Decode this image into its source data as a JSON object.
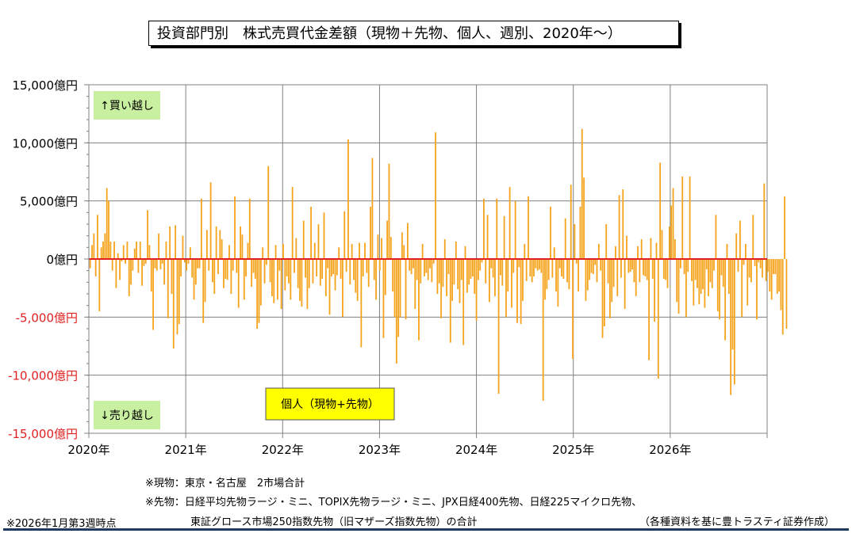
{
  "title": "投資部門別　株式売買代金差額（現物＋先物、個人、週別、2020年～）",
  "notes": {
    "spot": "※現物：東京・名古屋　2市場合計",
    "futures_line1": "※先物：日経平均先物ラージ・ミニ、TOPIX先物ラージ・ミニ、JPX日経400先物、日経225マイクロ先物、",
    "futures_line2": "東証グロース市場250指数先物（旧マザーズ指数先物）の合計",
    "asof": "※2026年1月第3週時点",
    "source": "（各種資料を基に豊トラスティ証券作成）"
  },
  "chart_data": {
    "type": "bar",
    "ylim": [
      -15000,
      15000
    ],
    "yticks": [
      15000,
      10000,
      5000,
      0,
      -5000,
      -10000,
      -15000
    ],
    "ytick_labels": [
      "15,000億円",
      "10,000億円",
      "5,000億円",
      "0億円",
      "-5,000億円",
      "-10,000億円",
      "-15,000億円"
    ],
    "xlim": [
      2020,
      2027
    ],
    "xticks": [
      2020,
      2021,
      2022,
      2023,
      2024,
      2025,
      2026
    ],
    "xtick_labels": [
      "2020年",
      "2021年",
      "2022年",
      "2023年",
      "2024年",
      "2025年",
      "2026年"
    ],
    "grid": true,
    "colors": {
      "bars": "#f5a31a",
      "zero_line": "#e02020",
      "negative_labels": "#e02020",
      "label_box": "#c9f0a0",
      "legend_box": "#ffff00"
    },
    "annotations": {
      "buy": "↑買い越し",
      "sell": "↓売り越し",
      "series_label": "個人（現物+先物）"
    },
    "series": [
      {
        "name": "個人（現物+先物）",
        "start": "2020-01-06",
        "interval_days": 7,
        "values": [
          -800,
          1200,
          2200,
          -1500,
          3800,
          -4500,
          1000,
          1500,
          2200,
          6100,
          5000,
          1500,
          -1000,
          1500,
          -2500,
          500,
          -1800,
          -200,
          1200,
          -400,
          1500,
          -3200,
          -2200,
          -1000,
          900,
          1500,
          -1200,
          1500,
          -2300,
          -600,
          -400,
          4200,
          1200,
          -2800,
          -6100,
          -800,
          -1000,
          2200,
          -900,
          -400,
          -2200,
          1500,
          -5100,
          2800,
          -3000,
          -7700,
          2900,
          -6500,
          -5600,
          -1500,
          2000,
          -300,
          -1000,
          -400,
          1000,
          -1600,
          -3500,
          -2200,
          -800,
          -800,
          5200,
          -5500,
          -3700,
          2500,
          -1000,
          6600,
          -2000,
          -3000,
          2800,
          -1300,
          2500,
          1700,
          -2500,
          -1700,
          -1800,
          1200,
          -3000,
          -1000,
          5400,
          -1200,
          -4200,
          2800,
          2100,
          -3500,
          -1500,
          1400,
          5200,
          -2400,
          -1200,
          -1700,
          -6000,
          -5500,
          -4000,
          1000,
          -2100,
          -500,
          8000,
          -2000,
          -3200,
          -3800,
          1200,
          -3500,
          -1000,
          -4300,
          1300,
          -2700,
          -1500,
          -2100,
          -3500,
          6200,
          -1200,
          1800,
          -2500,
          -3600,
          -4100,
          3300,
          -1600,
          -4300,
          -2500,
          4500,
          -2100,
          1400,
          -1500,
          3000,
          -2300,
          -1700,
          4000,
          -3200,
          -800,
          -4800,
          -1500,
          -1300,
          -2700,
          -1400,
          1000,
          -1700,
          -5000,
          4100,
          -1100,
          10300,
          -2200,
          1300,
          -1800,
          -2900,
          -3600,
          1400,
          -7600,
          -1500,
          1400,
          -1200,
          -2400,
          4500,
          8700,
          -1800,
          -3500,
          2100,
          -1000,
          1800,
          -6800,
          -3100,
          3300,
          8200,
          1900,
          -2800,
          -5000,
          -9000,
          -6700,
          -5000,
          2300,
          1200,
          -5200,
          3100,
          -1000,
          -1300,
          -800,
          -4300,
          -1800,
          -7000,
          -2100,
          1300,
          -1500,
          -1200,
          -1800,
          -800,
          -2000,
          -400,
          10900,
          -3000,
          -2100,
          -5100,
          -2400,
          1700,
          -3200,
          -1300,
          -7200,
          -3600,
          -2200,
          1500,
          -2600,
          -3800,
          -1800,
          -7400,
          1100,
          -2900,
          -2200,
          -1700,
          -1500,
          -3000,
          -5300,
          -1800,
          -1000,
          -300,
          5200,
          -2100,
          3800,
          -3700,
          -800,
          -1600,
          -3200,
          5200,
          -11600,
          -1400,
          -2300,
          3700,
          -5000,
          -2800,
          6200,
          -4200,
          -1200,
          5000,
          -5500,
          -700,
          -5600,
          -3600,
          1300,
          -1900,
          5400,
          -1500,
          -2000,
          -1500,
          -800,
          -1000,
          -900,
          -1200,
          -12200,
          -3500,
          -2600,
          -1800,
          4500,
          -1600,
          1000,
          -2800,
          -4100,
          -800,
          -1500,
          -1700,
          3500,
          -2000,
          -2600,
          6400,
          -8600,
          3000,
          -400,
          -2800,
          4500,
          11200,
          7000,
          -3600,
          -2700,
          -1800,
          -1200,
          -1300,
          -500,
          -2000,
          1300,
          -1000,
          -6800,
          -5800,
          3000,
          -2100,
          -5100,
          -3700,
          -2400,
          1100,
          -3200,
          5500,
          -1600,
          6000,
          -4300,
          2000,
          -1200,
          -1100,
          -900,
          -2000,
          -3200,
          1100,
          -2000,
          1700,
          -1400,
          -1500,
          -1800,
          -8700,
          1800,
          -1700,
          -5400,
          1400,
          -10300,
          8300,
          2500,
          -1700,
          -1800,
          -2500,
          2800,
          4600,
          6100,
          1700,
          -3700,
          -4700,
          -800,
          7100,
          -1300,
          -5000,
          -1100,
          7100,
          -1900,
          -4000,
          -1800,
          -2500,
          -3900,
          -3000,
          -2600,
          -4200,
          -900,
          -3200,
          -2000,
          -2500,
          -1000,
          3800,
          -4500,
          -5200,
          -1400,
          -2400,
          -7000,
          1300,
          -3000,
          -11700,
          -7800,
          -10800,
          2200,
          -1100,
          3300,
          -5000,
          -500,
          1300,
          -4000,
          -1600,
          -2000,
          3800,
          -600,
          -5200,
          -300,
          -800,
          -1600,
          6500,
          -1900,
          -1100,
          -2800,
          -3500,
          -1300,
          -1300,
          -3000,
          -2800,
          -4400,
          -6500,
          5400,
          -6000
        ]
      }
    ]
  }
}
